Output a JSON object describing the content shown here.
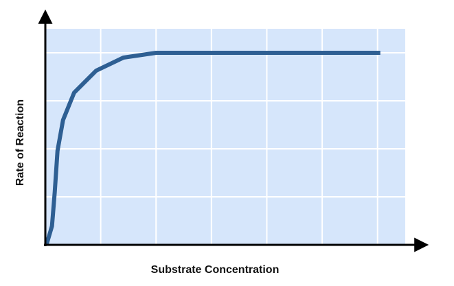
{
  "chart_data": {
    "type": "line",
    "x_label": "Substrate Concentration",
    "y_label": "Rate of Reaction",
    "x": [
      0.02,
      0.12,
      0.17,
      0.22,
      0.32,
      0.52,
      0.92,
      1.41,
      2,
      6.05
    ],
    "series": [
      {
        "color": "#2e5f93",
        "values": [
          0,
          0.39,
          1.1,
          1.96,
          2.6,
          3.17,
          3.63,
          3.9,
          4,
          4
        ]
      }
    ],
    "xlim": [
      0,
      6.5
    ],
    "xticks": [
      1,
      2,
      3,
      4,
      5,
      6
    ],
    "ylim": [
      0,
      4.5
    ],
    "yticks": [
      1,
      2,
      3,
      4
    ],
    "grid": true
  }
}
